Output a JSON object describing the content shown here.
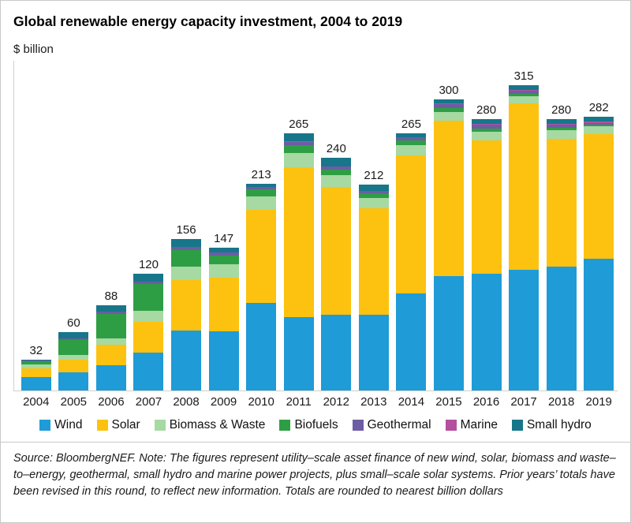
{
  "title": "Global renewable energy capacity investment, 2004 to 2019",
  "unit_label": "$ billion",
  "footnote": "Source: BloombergNEF. Note: The figures represent utility–scale asset finance of new wind, solar, biomass and waste–to–energy, geothermal, small hydro and marine power projects, plus small–scale solar systems. Prior years’ totals have been revised in this round, to reflect new information. Totals are rounded to nearest billion dollars",
  "chart_data": {
    "type": "bar",
    "stacked": true,
    "title": "Global renewable energy capacity investment, 2004 to 2019",
    "ylabel": "$ billion",
    "xlabel": "",
    "ylim": [
      0,
      330
    ],
    "grid": false,
    "legend_position": "bottom",
    "categories": [
      "2004",
      "2005",
      "2006",
      "2007",
      "2008",
      "2009",
      "2010",
      "2011",
      "2012",
      "2013",
      "2014",
      "2015",
      "2016",
      "2017",
      "2018",
      "2019"
    ],
    "totals": [
      32,
      60,
      88,
      120,
      156,
      147,
      213,
      265,
      240,
      212,
      265,
      300,
      280,
      315,
      280,
      282
    ],
    "series": [
      {
        "name": "Wind",
        "color": "#1f9bd7",
        "values": [
          14,
          19,
          26,
          39,
          62,
          61,
          90,
          76,
          78,
          78,
          100,
          118,
          120,
          124,
          128,
          136
        ]
      },
      {
        "name": "Solar",
        "color": "#fdc20f",
        "values": [
          9,
          13,
          21,
          32,
          52,
          55,
          96,
          154,
          132,
          110,
          142,
          160,
          138,
          172,
          131,
          128
        ]
      },
      {
        "name": "Biomass & Waste",
        "color": "#a7d9a2",
        "values": [
          4,
          5,
          7,
          11,
          14,
          14,
          14,
          15,
          12,
          10,
          11,
          9,
          9,
          7,
          9,
          8
        ]
      },
      {
        "name": "Biofuels",
        "color": "#2e9e44",
        "values": [
          3,
          15,
          25,
          28,
          17,
          9,
          7,
          8,
          6,
          5,
          5,
          4,
          3,
          3,
          3,
          2
        ]
      },
      {
        "name": "Geothermal",
        "color": "#6c5da5",
        "values": [
          1,
          2,
          2,
          2,
          3,
          3,
          3,
          3,
          3,
          3,
          3,
          4,
          4,
          3,
          3,
          2
        ]
      },
      {
        "name": "Marine",
        "color": "#b4509e",
        "values": [
          0,
          0,
          0,
          0,
          0,
          0,
          0,
          1,
          0,
          0,
          0,
          1,
          1,
          1,
          1,
          1
        ]
      },
      {
        "name": "Small hydro",
        "color": "#17768a",
        "values": [
          1,
          6,
          7,
          8,
          8,
          5,
          3,
          8,
          9,
          6,
          4,
          4,
          5,
          5,
          5,
          5
        ]
      }
    ]
  }
}
